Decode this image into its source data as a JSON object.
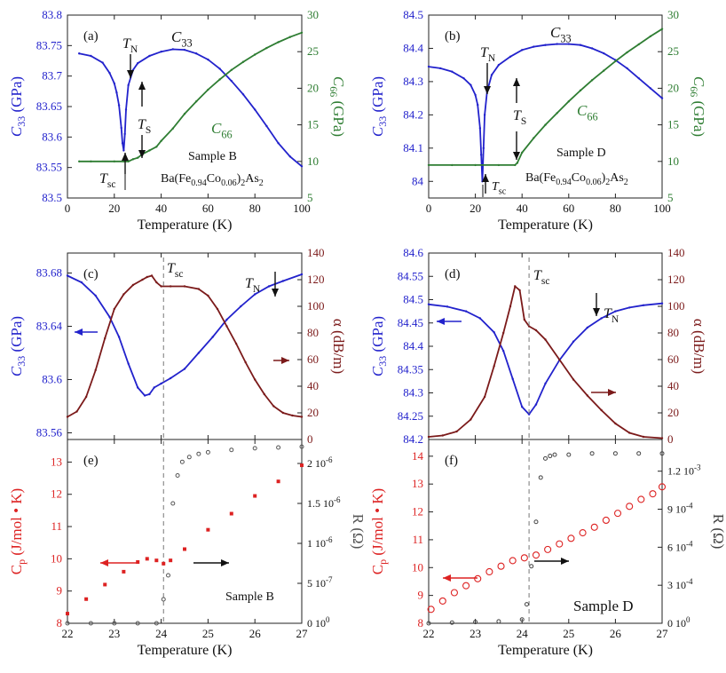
{
  "chart_data": [
    {
      "id": "a",
      "type": "line",
      "panel_label": "(a)",
      "xlabel": "Temperature (K)",
      "xticks": [
        "0",
        "20",
        "40",
        "60",
        "80",
        "100"
      ],
      "xlim": [
        0,
        100
      ],
      "ylabel_left": {
        "main": "C",
        "sub": "33",
        "unit": " (GPa)"
      },
      "ylim_left": [
        83.5,
        83.8
      ],
      "yticks_left": [
        "83.5",
        "83.55",
        "83.6",
        "83.65",
        "83.7",
        "83.75",
        "83.8"
      ],
      "ylabel_right": {
        "main": "C",
        "sub": "66",
        "unit": " (GPa)"
      },
      "ylim_right": [
        5,
        30
      ],
      "yticks_right": [
        "5",
        "10",
        "15",
        "20",
        "25",
        "30"
      ],
      "series": [
        {
          "name": "C33",
          "axis": "left",
          "color": "#2222cc",
          "x": [
            5,
            10,
            15,
            18,
            20,
            21,
            22,
            23,
            23.5,
            24,
            24.5,
            25,
            26,
            28,
            30,
            35,
            40,
            45,
            50,
            55,
            60,
            65,
            70,
            75,
            80,
            85,
            90,
            95,
            100
          ],
          "y": [
            83.737,
            83.733,
            83.722,
            83.705,
            83.688,
            83.673,
            83.652,
            83.615,
            83.59,
            83.578,
            83.605,
            83.645,
            83.685,
            83.71,
            83.721,
            83.733,
            83.74,
            83.744,
            83.743,
            83.737,
            83.727,
            83.712,
            83.692,
            83.67,
            83.645,
            83.618,
            83.59,
            83.568,
            83.552
          ]
        },
        {
          "name": "C66",
          "axis": "right",
          "color": "#2e7d32",
          "x": [
            5,
            10,
            20,
            24,
            26,
            28,
            30,
            32,
            35,
            38,
            40,
            45,
            50,
            55,
            60,
            65,
            70,
            75,
            80,
            85,
            90,
            95,
            100
          ],
          "y": [
            10,
            10,
            10,
            10,
            10,
            10.3,
            10.5,
            11,
            11.5,
            12,
            12.8,
            14.5,
            16.5,
            18.2,
            19.8,
            21.2,
            22.5,
            23.6,
            24.6,
            25.5,
            26.3,
            27,
            27.6
          ]
        }
      ],
      "annotations": [
        {
          "text": "T",
          "sub": "N"
        },
        {
          "text": "T",
          "sub": "S"
        },
        {
          "text": "T",
          "sub": "sc"
        },
        {
          "text": "C",
          "sub": "33"
        },
        {
          "text": "C",
          "sub": "66"
        },
        {
          "text": "Sample B"
        },
        {
          "text": "Ba(Fe0.94Co0.06)2As2"
        }
      ]
    },
    {
      "id": "b",
      "type": "line",
      "panel_label": "(b)",
      "xlabel": "Temperature (K)",
      "xticks": [
        "0",
        "20",
        "40",
        "60",
        "80",
        "100"
      ],
      "xlim": [
        0,
        100
      ],
      "ylabel_left": {
        "main": "C",
        "sub": "33",
        "unit": " (GPa)"
      },
      "ylim_left": [
        83.95,
        84.5
      ],
      "yticks_left": [
        "84",
        "84.1",
        "84.2",
        "84.3",
        "84.4",
        "84.5"
      ],
      "ylabel_right": {
        "main": "C",
        "sub": "66",
        "unit": " (GPa)"
      },
      "ylim_right": [
        5,
        30
      ],
      "yticks_right": [
        "5",
        "10",
        "15",
        "20",
        "25",
        "30"
      ],
      "series": [
        {
          "name": "C33",
          "axis": "left",
          "color": "#2222cc",
          "x": [
            0,
            5,
            10,
            15,
            18,
            20,
            21,
            22,
            22.5,
            23,
            23.5,
            24,
            25,
            27,
            30,
            35,
            40,
            45,
            50,
            55,
            60,
            65,
            70,
            75,
            80,
            85,
            90,
            95,
            100
          ],
          "y": [
            84.345,
            84.34,
            84.33,
            84.31,
            84.29,
            84.26,
            84.23,
            84.16,
            84.08,
            84.0,
            84.1,
            84.2,
            84.27,
            84.32,
            84.35,
            84.375,
            84.395,
            84.405,
            84.41,
            84.413,
            84.413,
            84.41,
            84.4,
            84.385,
            84.365,
            84.34,
            84.31,
            84.28,
            84.25
          ]
        },
        {
          "name": "C66",
          "axis": "right",
          "color": "#2e7d32",
          "x": [
            0,
            10,
            20,
            30,
            37,
            38,
            40,
            45,
            50,
            55,
            60,
            65,
            70,
            75,
            80,
            85,
            90,
            95,
            100
          ],
          "y": [
            9.5,
            9.5,
            9.5,
            9.5,
            9.5,
            9.8,
            11.2,
            13.2,
            15,
            16.6,
            18.2,
            19.7,
            21.1,
            22.4,
            23.7,
            24.9,
            26,
            27.1,
            28.1
          ]
        }
      ],
      "annotations": [
        {
          "text": "T",
          "sub": "N"
        },
        {
          "text": "T",
          "sub": "S"
        },
        {
          "text": "T",
          "sub": "sc"
        },
        {
          "text": "C",
          "sub": "33"
        },
        {
          "text": "C",
          "sub": "66"
        },
        {
          "text": "Sample D"
        },
        {
          "text": "Ba(Fe0.94Co0.06)2As2"
        }
      ]
    },
    {
      "id": "c",
      "type": "line",
      "panel_label": "(c)",
      "xlim": [
        22,
        27
      ],
      "ylabel_left": {
        "main": "C",
        "sub": "33",
        "unit": " (GPa)"
      },
      "ylim_left": [
        83.555,
        83.695
      ],
      "yticks_left": [
        "83.56",
        "83.6",
        "83.64",
        "83.68"
      ],
      "ylabel_right": {
        "main": "α",
        "unit": " (dB/m)"
      },
      "ylim_right": [
        0,
        140
      ],
      "yticks_right": [
        "0",
        "20",
        "40",
        "60",
        "80",
        "100",
        "120",
        "140"
      ],
      "series": [
        {
          "name": "C33",
          "axis": "left",
          "color": "#2222cc",
          "x": [
            22,
            22.3,
            22.6,
            22.9,
            23.1,
            23.3,
            23.5,
            23.65,
            23.75,
            23.85,
            24,
            24.2,
            24.5,
            24.8,
            25.1,
            25.4,
            25.7,
            26,
            26.3,
            26.6,
            27
          ],
          "y": [
            83.678,
            83.673,
            83.663,
            83.647,
            83.632,
            83.612,
            83.594,
            83.588,
            83.589,
            83.594,
            83.597,
            83.601,
            83.608,
            83.62,
            83.632,
            83.645,
            83.655,
            83.664,
            83.67,
            83.674,
            83.679
          ]
        },
        {
          "name": "α",
          "axis": "right",
          "color": "#7b1a1a",
          "x": [
            22,
            22.2,
            22.4,
            22.6,
            22.8,
            23,
            23.2,
            23.4,
            23.6,
            23.7,
            23.8,
            23.9,
            24,
            24.2,
            24.5,
            24.8,
            25,
            25.2,
            25.4,
            25.6,
            25.8,
            26,
            26.2,
            26.4,
            26.6,
            26.8,
            27
          ],
          "y": [
            17,
            21,
            32,
            52,
            76,
            98,
            109,
            116,
            120,
            122,
            123,
            118,
            115,
            115,
            115,
            113,
            108,
            98,
            85,
            72,
            58,
            45,
            34,
            25,
            20,
            18,
            17
          ]
        }
      ],
      "annotations": [
        {
          "text": "T",
          "sub": "sc"
        },
        {
          "text": "T",
          "sub": "N"
        }
      ]
    },
    {
      "id": "d",
      "type": "line",
      "panel_label": "(d)",
      "xlim": [
        22,
        27
      ],
      "ylabel_left": {
        "main": "C",
        "sub": "33",
        "unit": " (GPa)"
      },
      "ylim_left": [
        84.2,
        84.6
      ],
      "yticks_left": [
        "84.2",
        "84.25",
        "84.3",
        "84.35",
        "84.4",
        "84.45",
        "84.5",
        "84.55",
        "84.6"
      ],
      "ylabel_right": {
        "main": "α",
        "unit": " (dB/m)"
      },
      "ylim_right": [
        0,
        140
      ],
      "yticks_right": [
        "0",
        "20",
        "40",
        "60",
        "80",
        "100",
        "120",
        "140"
      ],
      "series": [
        {
          "name": "C33",
          "axis": "left",
          "color": "#2222cc",
          "x": [
            22,
            22.4,
            22.8,
            23.1,
            23.4,
            23.6,
            23.8,
            24,
            24.15,
            24.3,
            24.5,
            24.8,
            25.1,
            25.4,
            25.7,
            26,
            26.3,
            26.6,
            27
          ],
          "y": [
            84.49,
            84.485,
            84.475,
            84.46,
            84.43,
            84.39,
            84.33,
            84.27,
            84.254,
            84.275,
            84.32,
            84.37,
            84.41,
            84.44,
            84.46,
            84.475,
            84.483,
            84.488,
            84.492
          ]
        },
        {
          "name": "α",
          "axis": "right",
          "color": "#7b1a1a",
          "x": [
            22,
            22.3,
            22.6,
            22.9,
            23.2,
            23.4,
            23.6,
            23.75,
            23.85,
            23.95,
            24.05,
            24.15,
            24.3,
            24.5,
            24.8,
            25.1,
            25.4,
            25.7,
            26,
            26.3,
            26.6,
            27
          ],
          "y": [
            2,
            3,
            6,
            15,
            32,
            55,
            80,
            100,
            115,
            112,
            90,
            85,
            82,
            75,
            60,
            45,
            33,
            22,
            12,
            5,
            2,
            1
          ]
        }
      ],
      "annotations": [
        {
          "text": "T",
          "sub": "sc"
        },
        {
          "text": "T",
          "sub": "N"
        }
      ]
    },
    {
      "id": "e",
      "type": "scatter",
      "panel_label": "(e)",
      "xlabel": "Temperature (K)",
      "xticks": [
        "22",
        "23",
        "24",
        "25",
        "26",
        "27"
      ],
      "xlim": [
        22,
        27
      ],
      "ylabel_left": {
        "main": "C",
        "sub": "p",
        "unit": " (J/mol • K)"
      },
      "ylim_left": [
        8,
        13.7
      ],
      "yticks_left": [
        "8",
        "9",
        "10",
        "11",
        "12",
        "13"
      ],
      "ylabel_right": {
        "main": "R",
        "unit": " (Ω)"
      },
      "ylim_right": [
        0,
        2.3e-06
      ],
      "yticks_right": [
        {
          "v": 0,
          "m": "0",
          "e": "0"
        },
        {
          "v": 5e-07,
          "m": "5",
          "e": "-7"
        },
        {
          "v": 1e-06,
          "m": "1",
          "e": "-6"
        },
        {
          "v": 1.5e-06,
          "m": "1.5",
          "e": "-6"
        },
        {
          "v": 2e-06,
          "m": "2",
          "e": "-6"
        }
      ],
      "series": [
        {
          "name": "Cp",
          "axis": "left",
          "color": "#dd2222",
          "marker": "square",
          "x": [
            22,
            22.4,
            22.8,
            23.2,
            23.5,
            23.7,
            23.9,
            24.05,
            24.2,
            24.5,
            25,
            25.5,
            26,
            26.5,
            27
          ],
          "y": [
            8.3,
            8.75,
            9.2,
            9.6,
            9.9,
            10.0,
            9.95,
            9.85,
            9.95,
            10.3,
            10.9,
            11.4,
            11.95,
            12.4,
            12.9
          ]
        },
        {
          "name": "R",
          "axis": "right",
          "color": "#555555",
          "marker": "circle",
          "x": [
            22,
            22.5,
            23,
            23.5,
            23.9,
            24.05,
            24.15,
            24.25,
            24.35,
            24.45,
            24.6,
            24.8,
            25,
            25.5,
            26,
            26.5,
            27
          ],
          "y": [
            0,
            0,
            0,
            0,
            0,
            3e-07,
            6e-07,
            1.5e-06,
            1.85e-06,
            2.02e-06,
            2.08e-06,
            2.12e-06,
            2.14e-06,
            2.17e-06,
            2.19e-06,
            2.2e-06,
            2.21e-06
          ]
        }
      ],
      "annotations": [
        {
          "text": "Sample B"
        }
      ]
    },
    {
      "id": "f",
      "type": "scatter",
      "panel_label": "(f)",
      "xlabel": "Temperature (K)",
      "xticks": [
        "22",
        "23",
        "24",
        "25",
        "26",
        "27"
      ],
      "xlim": [
        22,
        27
      ],
      "ylabel_left": {
        "main": "C",
        "sub": "p",
        "unit": " (J/mol • K)"
      },
      "ylim_left": [
        8,
        14.6
      ],
      "yticks_left": [
        "8",
        "9",
        "10",
        "11",
        "12",
        "13",
        "14"
      ],
      "ylabel_right": {
        "main": "R",
        "unit": " (Ω)"
      },
      "ylim_right": [
        0,
        0.00145
      ],
      "yticks_right": [
        {
          "v": 0,
          "m": "0",
          "e": "0"
        },
        {
          "v": 0.0003,
          "m": "3",
          "e": "-4"
        },
        {
          "v": 0.0006,
          "m": "6",
          "e": "-4"
        },
        {
          "v": 0.0009,
          "m": "9",
          "e": "-4"
        },
        {
          "v": 0.0012,
          "m": "1.2",
          "e": "-3"
        }
      ],
      "series": [
        {
          "name": "Cp",
          "axis": "left",
          "color": "#dd2222",
          "marker": "open-circle",
          "x": [
            22.05,
            22.3,
            22.55,
            22.8,
            23.05,
            23.3,
            23.55,
            23.8,
            24.05,
            24.3,
            24.55,
            24.8,
            25.05,
            25.3,
            25.55,
            25.8,
            26.05,
            26.3,
            26.55,
            26.8,
            27
          ],
          "y": [
            8.5,
            8.8,
            9.1,
            9.35,
            9.6,
            9.85,
            10.05,
            10.25,
            10.35,
            10.45,
            10.65,
            10.85,
            11.05,
            11.25,
            11.45,
            11.7,
            11.95,
            12.2,
            12.45,
            12.65,
            12.9
          ]
        },
        {
          "name": "R",
          "axis": "right",
          "color": "#444444",
          "marker": "circle",
          "x": [
            22,
            22.5,
            23,
            23.5,
            24,
            24.1,
            24.2,
            24.3,
            24.4,
            24.5,
            24.6,
            24.7,
            25,
            25.5,
            26,
            26.5,
            27
          ],
          "y": [
            0,
            5e-06,
            1e-05,
            1.5e-05,
            3e-05,
            0.00015,
            0.00045,
            0.0008,
            0.00115,
            0.0013,
            0.00132,
            0.00133,
            0.00133,
            0.00134,
            0.00134,
            0.00134,
            0.00134
          ]
        }
      ],
      "annotations": [
        {
          "text": "Sample D"
        }
      ]
    }
  ],
  "colors": {
    "blue": "#2222cc",
    "green": "#2e7d32",
    "maroon": "#7b1a1a",
    "red": "#dd2222",
    "black": "#222222"
  }
}
